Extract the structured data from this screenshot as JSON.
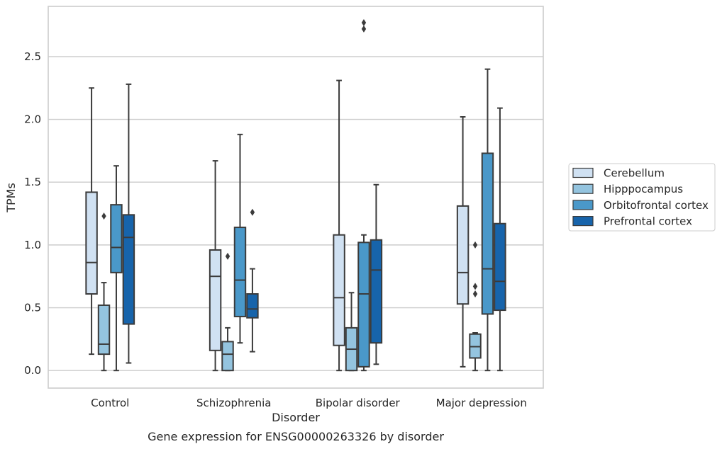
{
  "chart_data": {
    "type": "boxplot",
    "title": "Gene expression for ENSG00000263326 by disorder",
    "xlabel": "Disorder",
    "ylabel": "TPMs",
    "ylim": [
      -0.14,
      2.9
    ],
    "yticks": [
      0.0,
      0.5,
      1.0,
      1.5,
      2.0,
      2.5
    ],
    "ytick_labels": [
      "0.0",
      "0.5",
      "1.0",
      "1.5",
      "2.0",
      "2.5"
    ],
    "grid": "horizontal",
    "legend_position": "right",
    "categories": [
      "Control",
      "Schizophrenia",
      "Bipolar disorder",
      "Major depression"
    ],
    "series": [
      {
        "name": "Cerebellum",
        "color": "#d0e1f2",
        "boxes": [
          {
            "whisker_low": 0.13,
            "q1": 0.61,
            "median": 0.86,
            "q3": 1.42,
            "whisker_high": 2.25,
            "outliers": []
          },
          {
            "whisker_low": 0.0,
            "q1": 0.16,
            "median": 0.75,
            "q3": 0.96,
            "whisker_high": 1.67,
            "outliers": []
          },
          {
            "whisker_low": 0.0,
            "q1": 0.2,
            "median": 0.58,
            "q3": 1.08,
            "whisker_high": 2.31,
            "outliers": []
          },
          {
            "whisker_low": 0.03,
            "q1": 0.53,
            "median": 0.78,
            "q3": 1.31,
            "whisker_high": 2.02,
            "outliers": []
          }
        ]
      },
      {
        "name": "Hipppocampus",
        "color": "#94c4df",
        "boxes": [
          {
            "whisker_low": 0.0,
            "q1": 0.13,
            "median": 0.21,
            "q3": 0.52,
            "whisker_high": 0.7,
            "outliers": [
              1.23
            ]
          },
          {
            "whisker_low": 0.0,
            "q1": 0.0,
            "median": 0.13,
            "q3": 0.23,
            "whisker_high": 0.34,
            "outliers": [
              0.91
            ]
          },
          {
            "whisker_low": 0.0,
            "q1": 0.0,
            "median": 0.17,
            "q3": 0.34,
            "whisker_high": 0.62,
            "outliers": []
          },
          {
            "whisker_low": 0.0,
            "q1": 0.1,
            "median": 0.19,
            "q3": 0.29,
            "whisker_high": 0.3,
            "outliers": [
              0.61,
              0.67,
              1.0
            ]
          }
        ]
      },
      {
        "name": "Orbitofrontal cortex",
        "color": "#4a98c9",
        "boxes": [
          {
            "whisker_low": 0.0,
            "q1": 0.78,
            "median": 0.98,
            "q3": 1.32,
            "whisker_high": 1.63,
            "outliers": []
          },
          {
            "whisker_low": 0.22,
            "q1": 0.43,
            "median": 0.72,
            "q3": 1.14,
            "whisker_high": 1.88,
            "outliers": []
          },
          {
            "whisker_low": 0.0,
            "q1": 0.03,
            "median": 0.61,
            "q3": 1.02,
            "whisker_high": 1.08,
            "outliers": [
              2.72,
              2.77
            ]
          },
          {
            "whisker_low": 0.0,
            "q1": 0.45,
            "median": 0.81,
            "q3": 1.73,
            "whisker_high": 2.4,
            "outliers": []
          }
        ]
      },
      {
        "name": "Prefrontal cortex",
        "color": "#1764ab",
        "boxes": [
          {
            "whisker_low": 0.06,
            "q1": 0.37,
            "median": 1.06,
            "q3": 1.24,
            "whisker_high": 2.28,
            "outliers": []
          },
          {
            "whisker_low": 0.15,
            "q1": 0.42,
            "median": 0.49,
            "q3": 0.61,
            "whisker_high": 0.81,
            "outliers": [
              1.26
            ]
          },
          {
            "whisker_low": 0.05,
            "q1": 0.22,
            "median": 0.8,
            "q3": 1.04,
            "whisker_high": 1.48,
            "outliers": []
          },
          {
            "whisker_low": 0.0,
            "q1": 0.48,
            "median": 0.71,
            "q3": 1.17,
            "whisker_high": 2.09,
            "outliers": []
          }
        ]
      }
    ]
  }
}
